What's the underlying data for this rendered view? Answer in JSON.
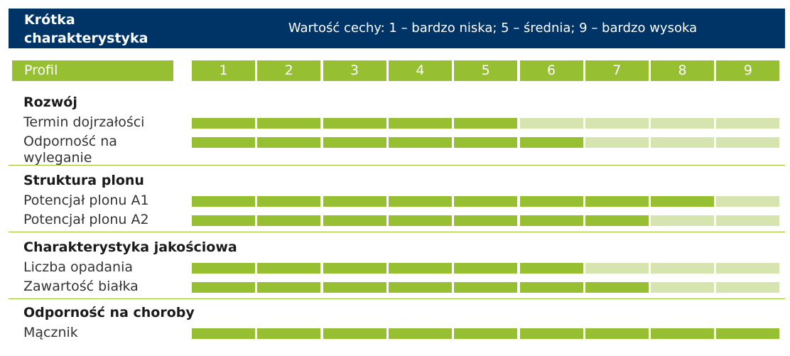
{
  "header": {
    "title_line1": "Krótka",
    "title_line2": "charakterystyka",
    "scale_text": "Wartość cechy: 1 – bardzo niska; 5 – średnia; 9 – bardzo wysoka"
  },
  "profile_label": "Profil",
  "colors": {
    "header_bg": "#003366",
    "accent": "#96bf32",
    "accent_light": "#d6e5b0"
  },
  "chart_data": {
    "type": "bar",
    "scale_min": 1,
    "scale_max": 9,
    "scale_labels": [
      "1",
      "2",
      "3",
      "4",
      "5",
      "6",
      "7",
      "8",
      "9"
    ],
    "groups": [
      {
        "title": "Rozwój",
        "rows": [
          {
            "label": "Termin dojrzałości",
            "value": 5
          },
          {
            "label": "Odporność na wyleganie",
            "value": 6
          }
        ]
      },
      {
        "title": "Struktura plonu",
        "rows": [
          {
            "label": "Potencjał plonu A1",
            "value": 8
          },
          {
            "label": "Potencjał plonu A2",
            "value": 7
          }
        ]
      },
      {
        "title": "Charakterystyka jakościowa",
        "rows": [
          {
            "label": "Liczba opadania",
            "value": 6
          },
          {
            "label": "Zawartość białka",
            "value": 7
          }
        ]
      },
      {
        "title": "Odporność na choroby",
        "rows": [
          {
            "label": "Mącznik",
            "value": 9
          }
        ]
      }
    ]
  }
}
